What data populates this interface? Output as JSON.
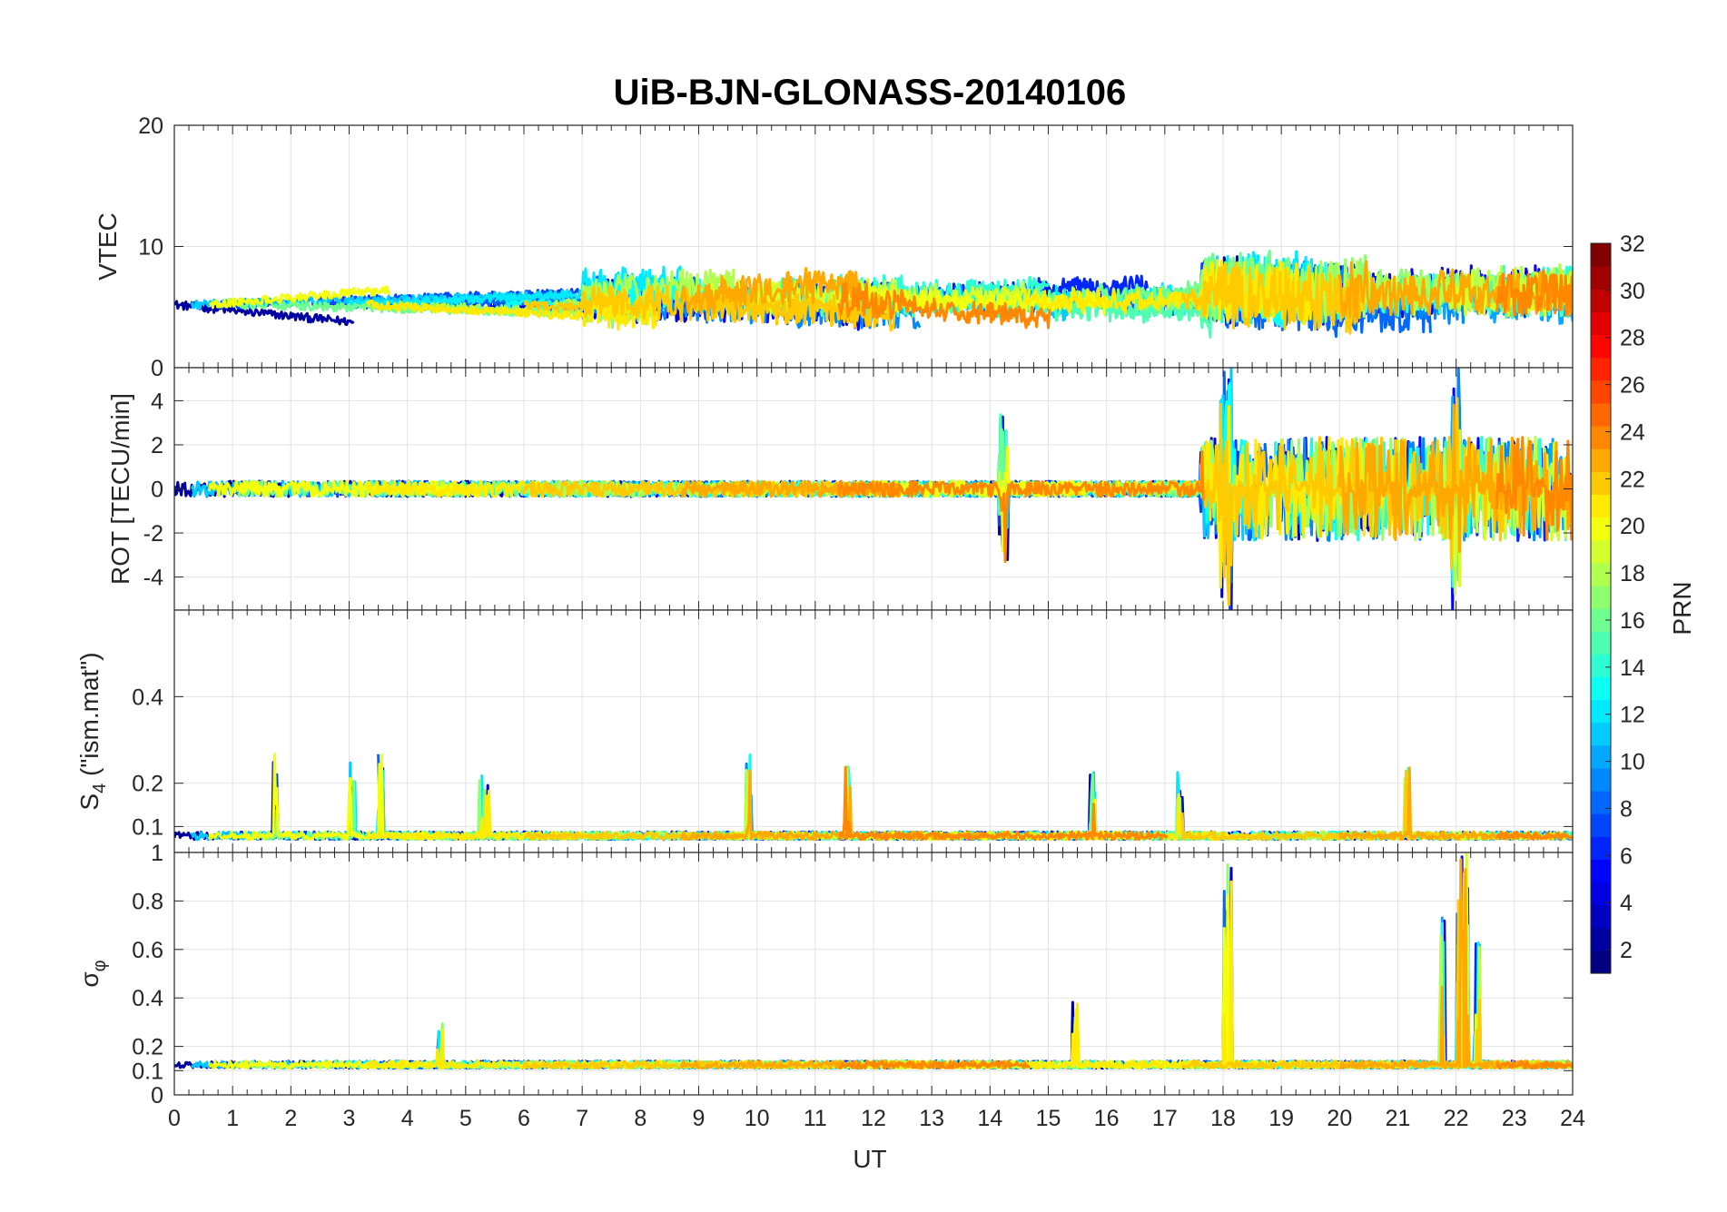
{
  "chart_data": {
    "type": "line",
    "title": "UiB-BJN-GLONASS-20140106",
    "xlabel": "UT",
    "xlim": [
      0,
      24
    ],
    "xticks": [
      0,
      1,
      2,
      3,
      4,
      5,
      6,
      7,
      8,
      9,
      10,
      11,
      12,
      13,
      14,
      15,
      16,
      17,
      18,
      19,
      20,
      21,
      22,
      23,
      24
    ],
    "xtick_labels": [
      "0",
      "1",
      "2",
      "3",
      "4",
      "5",
      "6",
      "7",
      "8",
      "9",
      "10",
      "11",
      "12",
      "13",
      "14",
      "15",
      "16",
      "17",
      "18",
      "19",
      "20",
      "21",
      "22",
      "23",
      "24"
    ],
    "grid": true,
    "colorbar": {
      "label": "PRN",
      "colormap": "jet",
      "range": [
        1,
        32
      ],
      "ticks": [
        2,
        4,
        6,
        8,
        10,
        12,
        14,
        16,
        18,
        20,
        22,
        24,
        26,
        28,
        30,
        32
      ],
      "tick_labels": [
        "2",
        "4",
        "6",
        "8",
        "10",
        "12",
        "14",
        "16",
        "18",
        "20",
        "22",
        "24",
        "26",
        "28",
        "30",
        "32"
      ]
    },
    "panels": [
      {
        "id": "vtec",
        "ylabel": "VTEC",
        "ylim": [
          0,
          20
        ],
        "yticks": [
          0,
          10,
          20
        ],
        "ytick_labels": [
          "0",
          "10",
          "20"
        ],
        "baseline": 5.2,
        "noise": 0.35,
        "events": [
          {
            "t0": 0,
            "t1": 7,
            "amp": 0.8
          },
          {
            "t0": 7,
            "t1": 12.5,
            "amp": 2.5
          },
          {
            "t0": 12.5,
            "t1": 17.6,
            "amp": 1.5
          },
          {
            "t0": 17.6,
            "t1": 20.5,
            "amp": 5.0
          },
          {
            "t0": 20.5,
            "t1": 24,
            "amp": 3.5
          }
        ]
      },
      {
        "id": "rot",
        "ylabel": "ROT [TECU/min]",
        "ylim": [
          -5.5,
          5.5
        ],
        "yticks": [
          -4,
          -2,
          0,
          2,
          4
        ],
        "ytick_labels": [
          "-4",
          "-2",
          "0",
          "2",
          "4"
        ],
        "baseline": 0,
        "noise": 0.15,
        "events": [
          {
            "t0": 0,
            "t1": 17.6,
            "amp": 0.2
          },
          {
            "t0": 14.15,
            "t1": 14.3,
            "amp": 3.3
          },
          {
            "t0": 17.6,
            "t1": 24,
            "amp": 2.2
          },
          {
            "t0": 17.95,
            "t1": 18.15,
            "amp": 5.5
          },
          {
            "t0": 21.9,
            "t1": 22.1,
            "amp": 5.5
          }
        ]
      },
      {
        "id": "s4",
        "ylabel": "S4 (\"ism.mat\")",
        "ylabel_main": "S",
        "ylabel_sub": "4",
        "ylabel_rest": " (\"ism.mat\")",
        "ylim": [
          0.04,
          0.6
        ],
        "yticks": [
          0.1,
          0.2,
          0.4
        ],
        "ytick_labels": [
          "0.1",
          "0.2",
          "0.4"
        ],
        "baseline": 0.07,
        "noise": 0.015,
        "events": [
          {
            "t0": 1.7,
            "t1": 1.8,
            "amp": 0.22
          },
          {
            "t0": 3.0,
            "t1": 3.1,
            "amp": 0.18
          },
          {
            "t0": 3.5,
            "t1": 3.6,
            "amp": 0.19
          },
          {
            "t0": 5.2,
            "t1": 5.4,
            "amp": 0.16
          },
          {
            "t0": 9.8,
            "t1": 9.9,
            "amp": 0.18
          },
          {
            "t0": 11.5,
            "t1": 11.6,
            "amp": 0.16
          },
          {
            "t0": 15.7,
            "t1": 15.8,
            "amp": 0.16
          },
          {
            "t0": 17.2,
            "t1": 17.3,
            "amp": 0.14
          },
          {
            "t0": 21.1,
            "t1": 21.2,
            "amp": 0.2
          }
        ]
      },
      {
        "id": "sigma",
        "ylabel": "σφ",
        "ylabel_main": "σ",
        "ylabel_sub": "φ",
        "ylim": [
          0,
          1
        ],
        "yticks": [
          0,
          0.1,
          0.2,
          0.4,
          0.6,
          0.8,
          1
        ],
        "ytick_labels": [
          "0",
          "0.1",
          "0.2",
          "0.4",
          "0.6",
          "0.8",
          "1"
        ],
        "baseline": 0.11,
        "noise": 0.025,
        "events": [
          {
            "t0": 4.5,
            "t1": 4.6,
            "amp": 0.17
          },
          {
            "t0": 15.4,
            "t1": 15.5,
            "amp": 0.26
          },
          {
            "t0": 18.0,
            "t1": 18.15,
            "amp": 0.9
          },
          {
            "t0": 21.7,
            "t1": 21.8,
            "amp": 0.68
          },
          {
            "t0": 22.0,
            "t1": 22.2,
            "amp": 0.9
          },
          {
            "t0": 22.3,
            "t1": 22.4,
            "amp": 0.55
          }
        ]
      }
    ],
    "series_prn": [
      2,
      3,
      4,
      5,
      6,
      7,
      8,
      9,
      10,
      11,
      12,
      13,
      14,
      15,
      16,
      17,
      18,
      19,
      20,
      21,
      22,
      23,
      24
    ]
  }
}
